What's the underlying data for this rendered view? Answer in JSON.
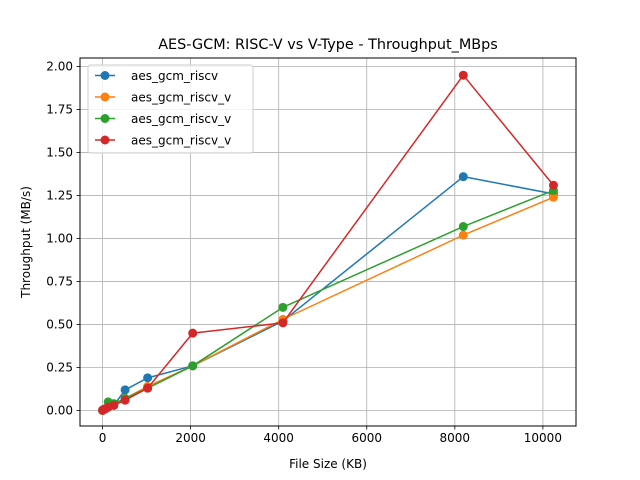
{
  "chart_data": {
    "type": "line",
    "title": "AES-GCM: RISC-V vs V-Type - Throughput_MBps",
    "xlabel": "File Size (KB)",
    "ylabel": "Throughput (MB/s)",
    "xlim": [
      -512,
      10752
    ],
    "ylim": [
      -0.09,
      2.05
    ],
    "xticks": [
      0,
      2000,
      4000,
      6000,
      8000,
      10000
    ],
    "xtick_labels": [
      "0",
      "2000",
      "4000",
      "6000",
      "8000",
      "10000"
    ],
    "yticks": [
      0.0,
      0.25,
      0.5,
      0.75,
      1.0,
      1.25,
      1.5,
      1.75,
      2.0
    ],
    "ytick_labels": [
      "0.00",
      "0.25",
      "0.50",
      "0.75",
      "1.00",
      "1.25",
      "1.50",
      "1.75",
      "2.00"
    ],
    "grid": true,
    "legend_position": "top-left",
    "x": [
      1,
      16,
      64,
      128,
      256,
      512,
      1024,
      2048,
      4096,
      8192,
      10240
    ],
    "series": [
      {
        "name": "aes_gcm_riscv",
        "color": "#1f77b4",
        "values": [
          0.001,
          0.005,
          0.01,
          0.02,
          0.03,
          0.12,
          0.19,
          0.26,
          0.52,
          1.36,
          1.26
        ]
      },
      {
        "name": "aes_gcm_riscv_v",
        "color": "#ff7f0e",
        "values": [
          0.001,
          0.005,
          0.01,
          0.02,
          0.035,
          0.07,
          0.14,
          0.26,
          0.53,
          1.02,
          1.24
        ]
      },
      {
        "name": "aes_gcm_riscv_v",
        "color": "#2ca02c",
        "values": [
          0.001,
          0.005,
          0.01,
          0.05,
          0.04,
          0.07,
          0.13,
          0.26,
          0.6,
          1.07,
          1.28
        ]
      },
      {
        "name": "aes_gcm_riscv_v",
        "color": "#d62728",
        "values": [
          0.001,
          0.005,
          0.01,
          0.02,
          0.03,
          0.06,
          0.13,
          0.45,
          0.51,
          1.95,
          1.31
        ]
      }
    ]
  }
}
